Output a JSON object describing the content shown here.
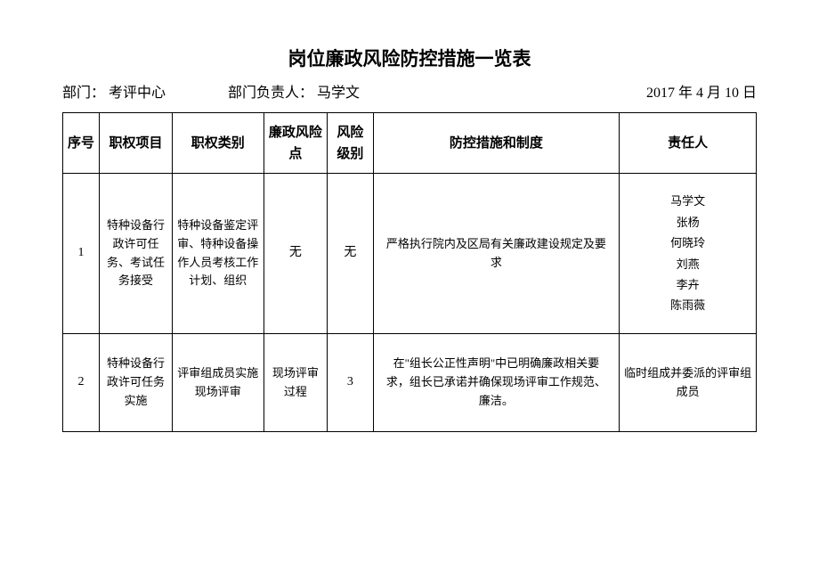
{
  "title": "岗位廉政风险防控措施一览表",
  "meta": {
    "dept_label": "部门：",
    "dept_value": "考评中心",
    "leader_label": "部门负责人：",
    "leader_value": "马学文",
    "date": "2017 年 4 月 10 日"
  },
  "columns": {
    "seq": "序号",
    "item": "职权项目",
    "category": "职权类别",
    "risk": "廉政风险点",
    "level": "风险级别",
    "measure": "防控措施和制度",
    "person": "责任人"
  },
  "rows": [
    {
      "seq": "1",
      "item": "特种设备行政许可任务、考试任务接受",
      "category": "特种设备鉴定评审、特种设备操作人员考核工作计划、组织",
      "risk": "无",
      "level": "无",
      "measure": "严格执行院内及区局有关廉政建设规定及要求",
      "persons": [
        "马学文",
        "张杨",
        "何晓玲",
        "刘燕",
        "李卉",
        "陈雨薇"
      ]
    },
    {
      "seq": "2",
      "item": "特种设备行政许可任务实施",
      "category": "评审组成员实施现场评审",
      "risk": "现场评审过程",
      "level": "3",
      "measure": "在\"组长公正性声明\"中已明确廉政相关要求，组长已承诺并确保现场评审工作规范、廉洁。",
      "persons": [
        "临时组成并委派的评审组成员"
      ]
    }
  ]
}
